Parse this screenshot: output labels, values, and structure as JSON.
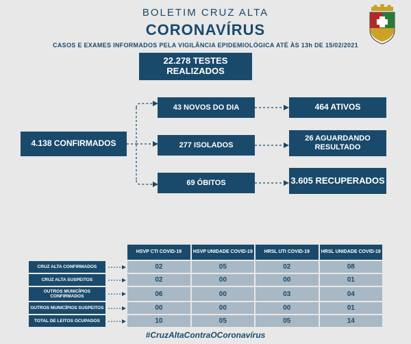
{
  "colors": {
    "primary": "#1a4a6b",
    "cell_bg": "#a8b8c4",
    "page_bg": "#e8e8e8",
    "connector": "#1a4a6b"
  },
  "header": {
    "title": "BOLETIM CRUZ ALTA",
    "disease": "CORONAVÍRUS",
    "subtitle": "CASOS E EXAMES INFORMADOS PELA VIGILÂNCIA EPIDEMIOLÓGICA ATÉ ÀS 13h DE 15/02/2021"
  },
  "boxes": {
    "testes": "22.278 TESTES REALIZADOS",
    "confirmados": "4.138 CONFIRMADOS",
    "novos": "43 NOVOS DO DIA",
    "isolados": "277 ISOLADOS",
    "obitos": "69 ÓBITOS",
    "ativos": "464 ATIVOS",
    "aguardando": "26  AGUARDANDO RESULTADO",
    "recuperados": "3.605 RECUPERADOS"
  },
  "table": {
    "columns": [
      "HSVP CTI COVID-19",
      "HSVP UNIDADE COVID-19",
      "HRSL UTI COVID-19",
      "HRSL UNIDADE COVID-19"
    ],
    "rows": [
      {
        "label": "CRUZ ALTA CONFIRMADOS",
        "cells": [
          "02",
          "05",
          "02",
          "08"
        ]
      },
      {
        "label": "CRUZ ALTA SUSPEITOS",
        "cells": [
          "02",
          "00",
          "00",
          "01"
        ]
      },
      {
        "label": "OUTROS MUNICÍPIOS CONFIRMADOS",
        "cells": [
          "06",
          "00",
          "03",
          "04"
        ]
      },
      {
        "label": "OUTROS MUNICÍPIOS SUSPEITOS",
        "cells": [
          "00",
          "00",
          "00",
          "01"
        ]
      },
      {
        "label": "TOTAL DE LEITOS OCUPADOS",
        "cells": [
          "10",
          "05",
          "05",
          "14"
        ]
      }
    ]
  },
  "hashtag": "#CruzAltaContraOCoronavírus"
}
